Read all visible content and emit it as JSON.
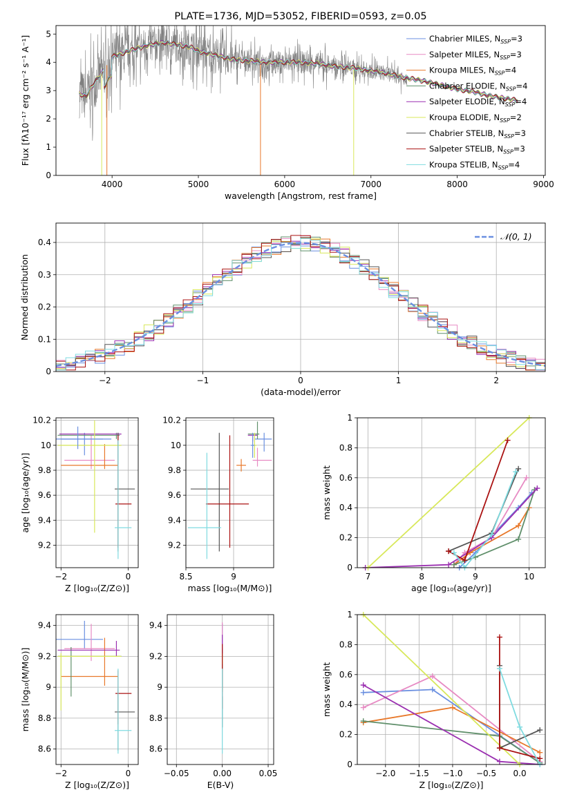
{
  "colors": {
    "chabrier_miles": "#6a8fe0",
    "salpeter_miles": "#e78ac3",
    "kroupa_miles": "#e8782a",
    "chabrier_elodie": "#5f8f6a",
    "salpeter_elodie": "#9a2fb0",
    "kroupa_elodie": "#d8e85a",
    "chabrier_stelib": "#555555",
    "salpeter_stelib": "#aa1111",
    "kroupa_stelib": "#7fdbe0",
    "gauss": "#6a8fe0",
    "grid": "#b0b0b0"
  },
  "chart_data": [
    {
      "id": "spectrum",
      "type": "line",
      "title": "PLATE=1736, MJD=53052, FIBERID=0593, z=0.05",
      "xlabel": "wavelength [Angstrom, rest frame]",
      "ylabel": "Flux [fλ10⁻¹⁷ erg cm⁻² s⁻¹ A⁻¹]",
      "xlim": [
        3350,
        9020
      ],
      "ylim": [
        0,
        5.3
      ],
      "xticks": [
        4000,
        5000,
        6000,
        7000,
        8000,
        9000
      ],
      "yticks": [
        0,
        1,
        2,
        3,
        4,
        5
      ],
      "grid": false,
      "legend_position": "upper-right",
      "legend": [
        {
          "name": "Chabrier MILES",
          "nssp": "3"
        },
        {
          "name": "Salpeter MILES",
          "nssp": "3"
        },
        {
          "name": "Kroupa MILES",
          "nssp": "4"
        },
        {
          "name": "Chabrier ELODIE",
          "nssp": "4"
        },
        {
          "name": "Salpeter ELODIE",
          "nssp": "4"
        },
        {
          "name": "Kroupa ELODIE",
          "nssp": "2"
        },
        {
          "name": "Chabrier STELIB",
          "nssp": "3"
        },
        {
          "name": "Salpeter STELIB",
          "nssp": "3"
        },
        {
          "name": "Kroupa STELIB",
          "nssp": "4"
        }
      ],
      "continuum": {
        "x": [
          3620,
          3700,
          3800,
          3900,
          4000,
          4200,
          4400,
          4600,
          4800,
          4900,
          5000,
          5200,
          5400,
          5600,
          5800,
          6000,
          6200,
          6400,
          6600,
          6800,
          7000,
          7200,
          7400,
          7600,
          7800,
          8000,
          8200,
          8400,
          8600,
          8700
        ],
        "y": [
          2.9,
          2.8,
          3.3,
          3.7,
          4.2,
          4.4,
          4.6,
          4.7,
          4.6,
          4.55,
          4.4,
          4.25,
          4.1,
          4.05,
          4.0,
          4.0,
          4.0,
          3.95,
          3.85,
          3.8,
          3.7,
          3.6,
          3.45,
          3.35,
          3.2,
          3.05,
          2.95,
          2.8,
          2.7,
          2.65
        ]
      }
    },
    {
      "id": "residuals",
      "type": "step",
      "xlabel": "(data-model)/error",
      "ylabel": "Normed distribution",
      "xlim": [
        -2.5,
        2.5
      ],
      "ylim": [
        0,
        0.46
      ],
      "xticks": [
        -2,
        -1,
        0,
        1,
        2
      ],
      "yticks": [
        0.0,
        0.1,
        0.2,
        0.3,
        0.4
      ],
      "grid": true,
      "legend_position": "upper-right",
      "legend": [
        "𝒩(0, 1)"
      ],
      "bin_width": 0.1,
      "bins_from": -2.5
    },
    {
      "id": "age_vs_Z",
      "type": "errorbar",
      "xlabel": "Z [log₁₀(Z/Z⊙)]",
      "ylabel": "age  [log₁₀(age/yr)]",
      "xlim": [
        -2.15,
        0.3
      ],
      "ylim": [
        9.02,
        10.22
      ],
      "xticks": [
        -2,
        0
      ],
      "yticks": [
        9.2,
        9.4,
        9.6,
        9.8,
        10.0,
        10.2
      ],
      "grid": true,
      "points": [
        {
          "x": -1.3,
          "y": 10.05,
          "xerr": [
            0.9,
            0.55
          ],
          "yerr": [
            0.13,
            0.05
          ]
        },
        {
          "x": -1.1,
          "y": 9.88,
          "xerr": [
            0.8,
            0.7
          ],
          "yerr": [
            0.07,
            0.2
          ]
        },
        {
          "x": -0.7,
          "y": 9.84,
          "xerr": [
            1.3,
            0.4
          ],
          "yerr": [
            0.03,
            0.17
          ]
        },
        {
          "x": -0.35,
          "y": 10.08,
          "xerr": [
            1.75,
            0.1
          ],
          "yerr": [
            0.03,
            0.02
          ]
        },
        {
          "x": -0.3,
          "y": 10.09,
          "xerr": [
            1.75,
            0.1
          ],
          "yerr": [
            0.03,
            0.01
          ]
        },
        {
          "x": -1.0,
          "y": 10.0,
          "xerr": [
            1.1,
            0.8
          ],
          "yerr": [
            0.7,
            0.2
          ]
        },
        {
          "x": -0.3,
          "y": 9.65,
          "xerr": [
            0.1,
            0.5
          ],
          "yerr": [
            0.5,
            0.45
          ]
        },
        {
          "x": -0.3,
          "y": 9.53,
          "xerr": [
            0.08,
            0.4
          ],
          "yerr": [
            0.35,
            0.55
          ]
        },
        {
          "x": -0.3,
          "y": 9.34,
          "xerr": [
            0.1,
            0.4
          ],
          "yerr": [
            0.25,
            0.7
          ]
        },
        {
          "x": -1.5,
          "y": 10.05,
          "xerr": [
            0.5,
            1.0
          ],
          "yerr": [
            0.08,
            0.1
          ]
        }
      ]
    },
    {
      "id": "age_vs_mass",
      "type": "errorbar",
      "xlabel": "mass [log₁₀(M/M⊙)]",
      "ylabel": "",
      "xlim": [
        8.5,
        9.42
      ],
      "ylim": [
        9.02,
        10.22
      ],
      "xticks": [
        8.5,
        9.0
      ],
      "yticks": [
        9.2,
        9.4,
        9.6,
        9.8,
        10.0,
        10.2
      ],
      "grid": true,
      "points": [
        {
          "x": 9.32,
          "y": 10.05,
          "xerr": [
            0.1,
            0.08
          ],
          "yerr": [
            0.1,
            0.05
          ]
        },
        {
          "x": 9.25,
          "y": 9.88,
          "xerr": [
            0.05,
            0.15
          ],
          "yerr": [
            0.05,
            0.1
          ]
        },
        {
          "x": 9.08,
          "y": 9.84,
          "xerr": [
            0.05,
            0.05
          ],
          "yerr": [
            0.05,
            0.05
          ]
        },
        {
          "x": 9.25,
          "y": 10.09,
          "xerr": [
            0.1,
            0.02
          ],
          "yerr": [
            0.04,
            0.1
          ]
        },
        {
          "x": 9.2,
          "y": 10.08,
          "xerr": [
            0.05,
            0.05
          ],
          "yerr": [
            0.05,
            0.01
          ]
        },
        {
          "x": 9.22,
          "y": 10.0,
          "xerr": [
            0.02,
            0.02
          ],
          "yerr": [
            0.1,
            0.1
          ]
        },
        {
          "x": 8.85,
          "y": 9.65,
          "xerr": [
            0.3,
            0.1
          ],
          "yerr": [
            0.5,
            0.45
          ]
        },
        {
          "x": 8.96,
          "y": 9.53,
          "xerr": [
            0.25,
            0.2
          ],
          "yerr": [
            0.35,
            0.55
          ]
        },
        {
          "x": 8.72,
          "y": 9.34,
          "xerr": [
            0.2,
            0.15
          ],
          "yerr": [
            0.25,
            0.6
          ]
        },
        {
          "x": 9.2,
          "y": 10.0,
          "xerr": [
            0.02,
            0.02
          ],
          "yerr": [
            0.1,
            0.1
          ]
        }
      ]
    },
    {
      "id": "weight_vs_age",
      "type": "line",
      "xlabel": "age  [log₁₀(age/yr)]",
      "ylabel": "mass weight",
      "xlim": [
        6.8,
        10.3
      ],
      "ylim": [
        0,
        1.0
      ],
      "xticks": [
        7,
        8,
        9,
        10
      ],
      "yticks": [
        0.0,
        0.2,
        0.4,
        0.6,
        0.8,
        1.0
      ],
      "grid": true,
      "series": [
        {
          "x": [
            8.7,
            9.0,
            9.8,
            10.05
          ],
          "y": [
            0.0,
            0.1,
            0.4,
            0.5
          ]
        },
        {
          "x": [
            8.6,
            8.8,
            9.3,
            9.95
          ],
          "y": [
            0.02,
            0.1,
            0.2,
            0.6
          ]
        },
        {
          "x": [
            8.6,
            8.9,
            9.8,
            10.0
          ],
          "y": [
            0.02,
            0.1,
            0.28,
            0.4
          ]
        },
        {
          "x": [
            8.6,
            9.0,
            9.8,
            10.1
          ],
          "y": [
            0.02,
            0.07,
            0.19,
            0.52
          ]
        },
        {
          "x": [
            6.95,
            8.5,
            9.3,
            10.15
          ],
          "y": [
            0.0,
            0.02,
            0.2,
            0.53
          ]
        },
        {
          "x": [
            7.0,
            10.0
          ],
          "y": [
            0.0,
            1.0
          ]
        },
        {
          "x": [
            8.5,
            9.3,
            9.8
          ],
          "y": [
            0.11,
            0.23,
            0.66
          ]
        },
        {
          "x": [
            8.5,
            8.8,
            9.6
          ],
          "y": [
            0.11,
            0.05,
            0.85
          ]
        },
        {
          "x": [
            8.6,
            8.8,
            9.3,
            9.75
          ],
          "y": [
            0.1,
            0.0,
            0.22,
            0.64
          ]
        }
      ]
    },
    {
      "id": "mass_vs_Z",
      "type": "errorbar",
      "xlabel": "Z [log₁₀(Z/Z⊙)]",
      "ylabel": "mass [log₁₀(M/M⊙)]",
      "xlim": [
        -2.15,
        0.3
      ],
      "ylim": [
        8.5,
        9.47
      ],
      "xticks": [
        -2,
        0
      ],
      "yticks": [
        8.6,
        8.8,
        9.0,
        9.2,
        9.4
      ],
      "grid": true,
      "points": [
        {
          "x": -1.3,
          "y": 9.31,
          "xerr": [
            0.9,
            0.55
          ],
          "yerr": [
            0.06,
            0.12
          ]
        },
        {
          "x": -1.1,
          "y": 9.25,
          "xerr": [
            0.8,
            0.7
          ],
          "yerr": [
            0.08,
            0.16
          ]
        },
        {
          "x": -0.7,
          "y": 9.07,
          "xerr": [
            1.3,
            0.4
          ],
          "yerr": [
            0.06,
            0.25
          ]
        },
        {
          "x": -1.7,
          "y": 9.2,
          "xerr": [
            0.4,
            1.5
          ],
          "yerr": [
            0.26,
            0.06
          ]
        },
        {
          "x": -0.35,
          "y": 9.24,
          "xerr": [
            1.75,
            0.1
          ],
          "yerr": [
            0.04,
            0.06
          ]
        },
        {
          "x": -2.0,
          "y": 9.2,
          "xerr": [
            0.1,
            1.8
          ],
          "yerr": [
            0.35,
            0.02
          ]
        },
        {
          "x": -0.3,
          "y": 8.84,
          "xerr": [
            0.1,
            0.5
          ],
          "yerr": [
            0.25,
            0.15
          ]
        },
        {
          "x": -0.3,
          "y": 8.96,
          "xerr": [
            0.08,
            0.4
          ],
          "yerr": [
            0.2,
            0.15
          ]
        },
        {
          "x": -0.3,
          "y": 8.72,
          "xerr": [
            0.1,
            0.4
          ],
          "yerr": [
            0.15,
            0.4
          ]
        }
      ]
    },
    {
      "id": "mass_vs_ebv",
      "type": "errorbar",
      "xlabel": "E(B-V)",
      "ylabel": "",
      "xlim": [
        -0.06,
        0.056
      ],
      "ylim": [
        8.5,
        9.47
      ],
      "xticks": [
        -0.05,
        0.0,
        0.05
      ],
      "xticklabels": [
        "−0.05",
        "0.00",
        "0.05"
      ],
      "yticks": [
        8.6,
        8.8,
        9.0,
        9.2,
        9.4
      ],
      "grid": true,
      "points": [
        {
          "x": 0.0,
          "y": 9.31,
          "yerr": [
            0.1,
            0.1
          ]
        },
        {
          "x": 0.0,
          "y": 9.25,
          "yerr": [
            0.15,
            0.17
          ]
        },
        {
          "x": 0.0,
          "y": 9.07,
          "yerr": [
            0.1,
            0.1
          ]
        },
        {
          "x": 0.0,
          "y": 9.2,
          "yerr": [
            0.2,
            0.05
          ]
        },
        {
          "x": 0.0,
          "y": 9.24,
          "yerr": [
            0.05,
            0.1
          ]
        },
        {
          "x": 0.0,
          "y": 9.2,
          "yerr": [
            0.05,
            0.02
          ]
        },
        {
          "x": 0.0,
          "y": 8.84,
          "yerr": [
            0.1,
            0.1
          ]
        },
        {
          "x": 0.0,
          "y": 8.96,
          "yerr": [
            0.1,
            0.32
          ]
        },
        {
          "x": 0.0,
          "y": 8.72,
          "yerr": [
            0.15,
            0.4
          ]
        }
      ]
    },
    {
      "id": "weight_vs_Z",
      "type": "line",
      "xlabel": "Z [log₁₀(Z/Z⊙)]",
      "ylabel": "mass weight",
      "xlim": [
        -2.42,
        0.38
      ],
      "ylim": [
        0,
        1.0
      ],
      "xticks": [
        -2.0,
        -1.5,
        -1.0,
        -0.5,
        0.0
      ],
      "xticklabels": [
        "−2.0",
        "−1.5",
        "−1.0",
        "−0.5",
        "0.0"
      ],
      "yticks": [
        0.0,
        0.2,
        0.4,
        0.6,
        0.8,
        1.0
      ],
      "grid": true,
      "series": [
        {
          "x": [
            -2.33,
            -1.3,
            0.3
          ],
          "y": [
            0.48,
            0.5,
            0.01
          ]
        },
        {
          "x": [
            -2.33,
            -1.3,
            0.3
          ],
          "y": [
            0.38,
            0.59,
            0.02
          ]
        },
        {
          "x": [
            -2.33,
            -1.0,
            0.3
          ],
          "y": [
            0.28,
            0.38,
            0.08
          ]
        },
        {
          "x": [
            -2.33,
            -0.3,
            0.3
          ],
          "y": [
            0.29,
            0.19,
            0.01
          ]
        },
        {
          "x": [
            -2.33,
            -0.3,
            0.3
          ],
          "y": [
            0.53,
            0.02,
            0.0
          ]
        },
        {
          "x": [
            -2.33,
            0.0
          ],
          "y": [
            1.0,
            0.0
          ]
        },
        {
          "x": [
            -0.3,
            -0.3,
            0.3
          ],
          "y": [
            0.66,
            0.11,
            0.23
          ]
        },
        {
          "x": [
            -0.3,
            -0.3,
            0.3
          ],
          "y": [
            0.85,
            0.11,
            0.04
          ]
        },
        {
          "x": [
            -0.3,
            0.0,
            0.3
          ],
          "y": [
            0.64,
            0.25,
            0.0
          ]
        }
      ]
    }
  ]
}
